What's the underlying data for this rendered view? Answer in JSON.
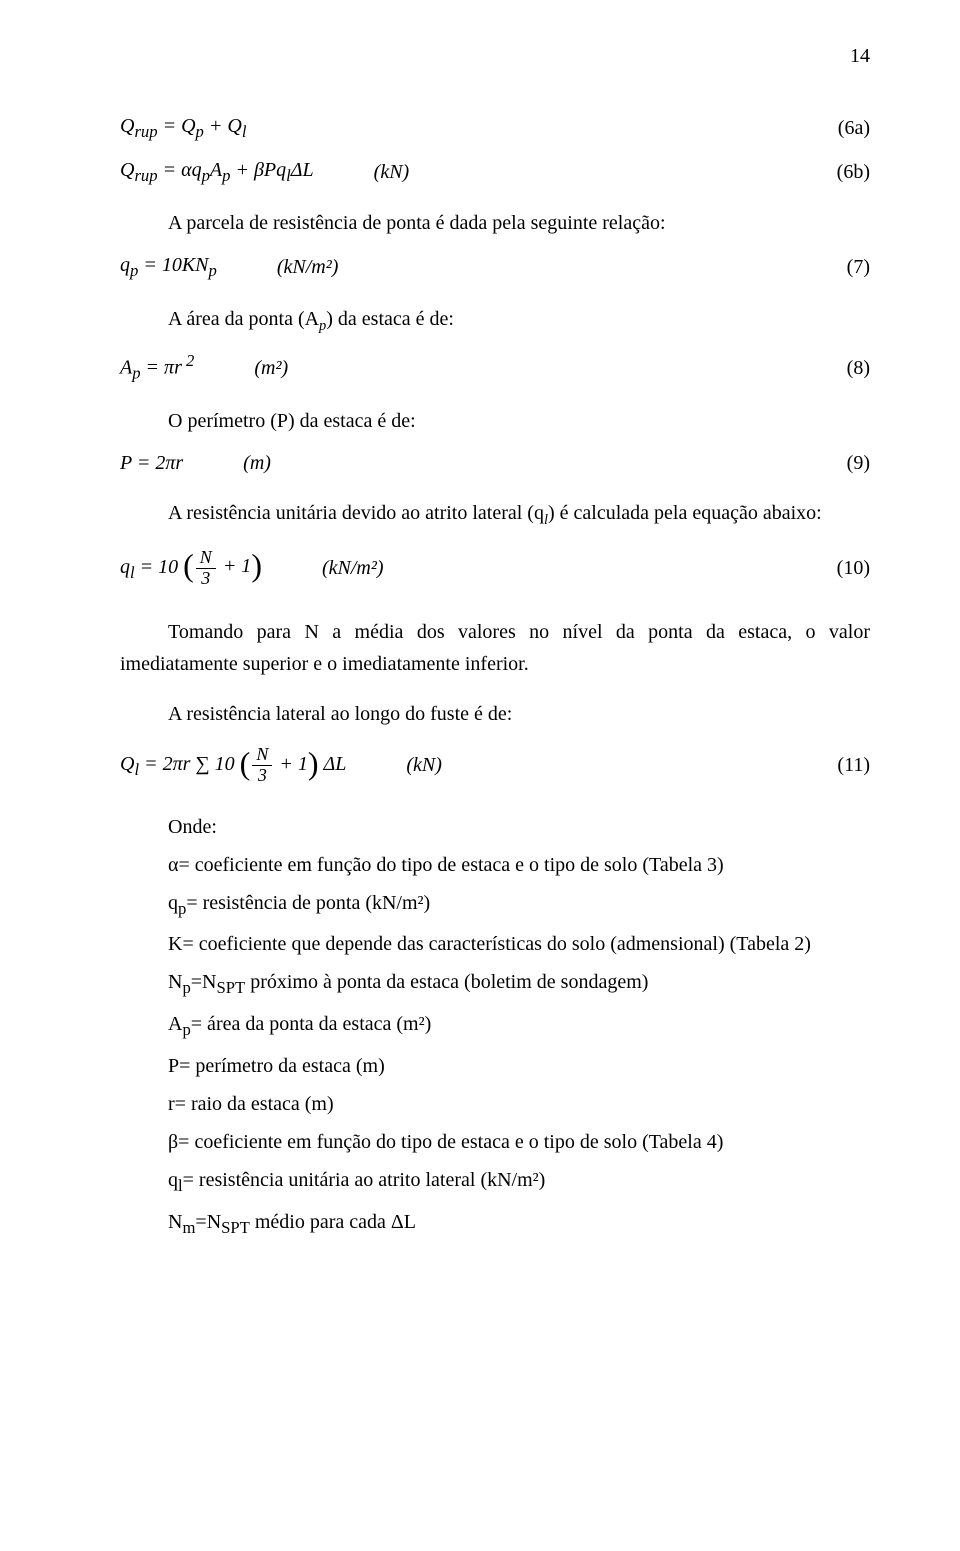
{
  "page_number": "14",
  "eq6a": {
    "expr": "Q<sub>rup</sub> = Q<sub>p</sub> + Q<sub>l</sub>",
    "num": "(6a)"
  },
  "eq6b": {
    "expr": "Q<sub>rup</sub> = αq<sub>p</sub>A<sub>p</sub> + βPq<sub>l</sub>ΔL",
    "unit": "(kN)",
    "num": "(6b)"
  },
  "para1": "A parcela de resistência de ponta é dada pela seguinte relação:",
  "eq7": {
    "expr": "q<sub>p</sub> = 10KN<sub>p</sub>",
    "unit": "(kN/m²)",
    "num": "(7)"
  },
  "para2_pre": "A área da ponta (A",
  "para2_sub": "p",
  "para2_post": ") da estaca é de:",
  "eq8": {
    "expr": "A<sub>p</sub> = πr<sup> 2</sup>",
    "unit": "(m²)",
    "num": "(8)"
  },
  "para3": "O perímetro (P) da estaca é de:",
  "eq9": {
    "expr": "P = 2πr",
    "unit": "(m)",
    "num": "(9)"
  },
  "para4_pre": "A resistência unitária devido ao atrito lateral (q",
  "para4_sub": "l",
  "para4_post": ") é calculada pela equação abaixo:",
  "eq10": {
    "pre": "q<sub>l</sub> = 10 ",
    "frac_num": "N",
    "frac_den": "3",
    "post": " + 1",
    "unit": "(kN/m²)",
    "num": "(10)"
  },
  "para5": "Tomando para N a média dos valores no nível da ponta da estaca, o valor imediatamente superior e o imediatamente inferior.",
  "para6": "A resistência lateral ao longo do fuste é de:",
  "eq11": {
    "pre": "Q<sub>l</sub> = 2πr ∑ 10 ",
    "frac_num": "N",
    "frac_den": "3",
    "post": " + 1",
    "tail": " ΔL",
    "unit": "(kN)",
    "num": "(11)"
  },
  "onde_label": "Onde:",
  "onde_items": [
    "α= coeficiente em função do tipo de estaca e o tipo de solo (Tabela 3)",
    "q<sub>p</sub>= resistência de ponta (kN/m²)",
    "K= coeficiente que depende das características do solo (admensional) (Tabela 2)",
    "N<sub>p</sub>=N<sub>SPT</sub> próximo à ponta da estaca (boletim de sondagem)",
    "A<sub>p</sub>= área da ponta da estaca (m²)",
    "P= perímetro da estaca (m)",
    "r= raio da estaca (m)",
    "β= coeficiente em função do tipo de estaca e o tipo de solo (Tabela 4)",
    "q<sub>l</sub>= resistência unitária ao atrito lateral (kN/m²)",
    "N<sub>m</sub>=N<sub>SPT</sub> médio para cada ΔL"
  ]
}
